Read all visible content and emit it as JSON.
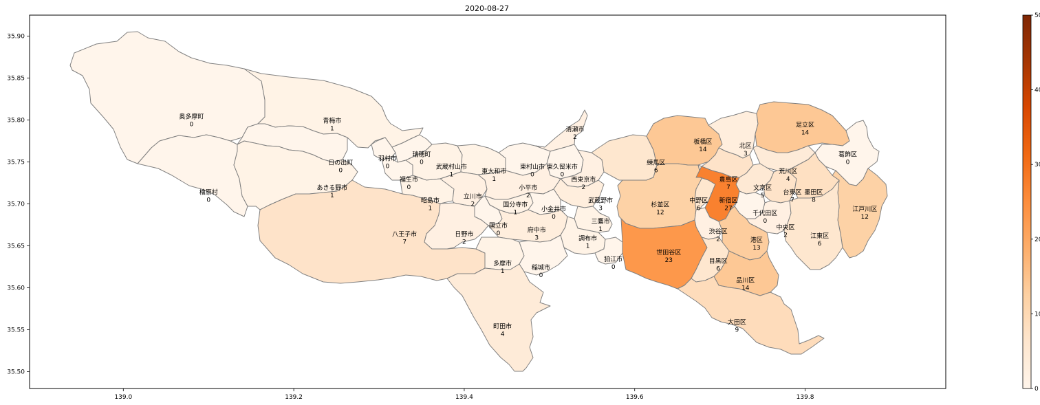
{
  "chart_data": {
    "type": "heatmap",
    "subtype": "choropleth",
    "title": "2020-08-27",
    "xlabel": "",
    "ylabel": "",
    "xlim": [
      138.89,
      139.965
    ],
    "ylim": [
      35.48,
      35.925
    ],
    "xticks": [
      "139.0",
      "139.2",
      "139.4",
      "139.6",
      "139.8"
    ],
    "yticks": [
      "35.50",
      "35.55",
      "35.60",
      "35.65",
      "35.70",
      "35.75",
      "35.80",
      "35.85",
      "35.90"
    ],
    "grid": false,
    "colormap": "Oranges",
    "colorbar": {
      "min": 0,
      "max": 50,
      "ticks": [
        "0",
        "10",
        "20",
        "30",
        "40",
        "50"
      ]
    },
    "regions": [
      {
        "name": "奥多摩町",
        "value": 0,
        "lon": 139.08,
        "lat": 35.8
      },
      {
        "name": "青梅市",
        "value": 1,
        "lon": 139.245,
        "lat": 35.795
      },
      {
        "name": "檜原村",
        "value": 0,
        "lon": 139.1,
        "lat": 35.71
      },
      {
        "name": "日の出町",
        "value": 0,
        "lon": 139.255,
        "lat": 35.745
      },
      {
        "name": "あきる野市",
        "value": 1,
        "lon": 139.245,
        "lat": 35.715
      },
      {
        "name": "八王子市",
        "value": 7,
        "lon": 139.33,
        "lat": 35.66
      },
      {
        "name": "羽村市",
        "value": 0,
        "lon": 139.31,
        "lat": 35.75
      },
      {
        "name": "瑞穂町",
        "value": 0,
        "lon": 139.35,
        "lat": 35.755
      },
      {
        "name": "福生市",
        "value": 0,
        "lon": 139.335,
        "lat": 35.725
      },
      {
        "name": "武蔵村山市",
        "value": 1,
        "lon": 139.385,
        "lat": 35.74
      },
      {
        "name": "東大和市",
        "value": 1,
        "lon": 139.435,
        "lat": 35.735
      },
      {
        "name": "東村山市",
        "value": 0,
        "lon": 139.48,
        "lat": 35.74
      },
      {
        "name": "清瀬市",
        "value": 2,
        "lon": 139.53,
        "lat": 35.785
      },
      {
        "name": "東久留米市",
        "value": 0,
        "lon": 139.515,
        "lat": 35.74
      },
      {
        "name": "昭島市",
        "value": 1,
        "lon": 139.36,
        "lat": 35.7
      },
      {
        "name": "立川市",
        "value": 2,
        "lon": 139.41,
        "lat": 35.705
      },
      {
        "name": "小平市",
        "value": 2,
        "lon": 139.475,
        "lat": 35.715
      },
      {
        "name": "西東京市",
        "value": 2,
        "lon": 139.54,
        "lat": 35.725
      },
      {
        "name": "国分寺市",
        "value": 1,
        "lon": 139.46,
        "lat": 35.695
      },
      {
        "name": "国立市",
        "value": 0,
        "lon": 139.44,
        "lat": 35.67
      },
      {
        "name": "小金井市",
        "value": 0,
        "lon": 139.505,
        "lat": 35.69
      },
      {
        "name": "武蔵野市",
        "value": 3,
        "lon": 139.56,
        "lat": 35.7
      },
      {
        "name": "日野市",
        "value": 2,
        "lon": 139.4,
        "lat": 35.66
      },
      {
        "name": "府中市",
        "value": 3,
        "lon": 139.485,
        "lat": 35.665
      },
      {
        "name": "三鷹市",
        "value": 1,
        "lon": 139.56,
        "lat": 35.675
      },
      {
        "name": "調布市",
        "value": 1,
        "lon": 139.545,
        "lat": 35.655
      },
      {
        "name": "多摩市",
        "value": 1,
        "lon": 139.445,
        "lat": 35.625
      },
      {
        "name": "稲城市",
        "value": 0,
        "lon": 139.49,
        "lat": 35.62
      },
      {
        "name": "狛江市",
        "value": 0,
        "lon": 139.575,
        "lat": 35.63
      },
      {
        "name": "町田市",
        "value": 4,
        "lon": 139.445,
        "lat": 35.55
      },
      {
        "name": "練馬区",
        "value": 6,
        "lon": 139.625,
        "lat": 35.745
      },
      {
        "name": "板橋区",
        "value": 14,
        "lon": 139.68,
        "lat": 35.77
      },
      {
        "name": "北区",
        "value": 3,
        "lon": 139.73,
        "lat": 35.765
      },
      {
        "name": "足立区",
        "value": 14,
        "lon": 139.8,
        "lat": 35.79
      },
      {
        "name": "葛飾区",
        "value": 0,
        "lon": 139.85,
        "lat": 35.755
      },
      {
        "name": "荒川区",
        "value": 4,
        "lon": 139.78,
        "lat": 35.735
      },
      {
        "name": "豊島区",
        "value": 7,
        "lon": 139.71,
        "lat": 35.725
      },
      {
        "name": "文京区",
        "value": 5,
        "lon": 139.75,
        "lat": 35.715
      },
      {
        "name": "台東区",
        "value": 7,
        "lon": 139.785,
        "lat": 35.71
      },
      {
        "name": "墨田区",
        "value": 8,
        "lon": 139.81,
        "lat": 35.71
      },
      {
        "name": "杉並区",
        "value": 12,
        "lon": 139.63,
        "lat": 35.695
      },
      {
        "name": "中野区",
        "value": 6,
        "lon": 139.675,
        "lat": 35.7
      },
      {
        "name": "新宿区",
        "value": 27,
        "lon": 139.71,
        "lat": 35.7
      },
      {
        "name": "千代田区",
        "value": 0,
        "lon": 139.753,
        "lat": 35.685
      },
      {
        "name": "江戸川区",
        "value": 12,
        "lon": 139.87,
        "lat": 35.69
      },
      {
        "name": "中央区",
        "value": 2,
        "lon": 139.777,
        "lat": 35.668
      },
      {
        "name": "渋谷区",
        "value": 2,
        "lon": 139.698,
        "lat": 35.663
      },
      {
        "name": "港区",
        "value": 13,
        "lon": 139.743,
        "lat": 35.653
      },
      {
        "name": "江東区",
        "value": 6,
        "lon": 139.817,
        "lat": 35.658
      },
      {
        "name": "世田谷区",
        "value": 23,
        "lon": 139.64,
        "lat": 35.638
      },
      {
        "name": "目黒区",
        "value": 6,
        "lon": 139.698,
        "lat": 35.628
      },
      {
        "name": "品川区",
        "value": 14,
        "lon": 139.73,
        "lat": 35.605
      },
      {
        "name": "大田区",
        "value": 9,
        "lon": 139.72,
        "lat": 35.555
      }
    ]
  }
}
